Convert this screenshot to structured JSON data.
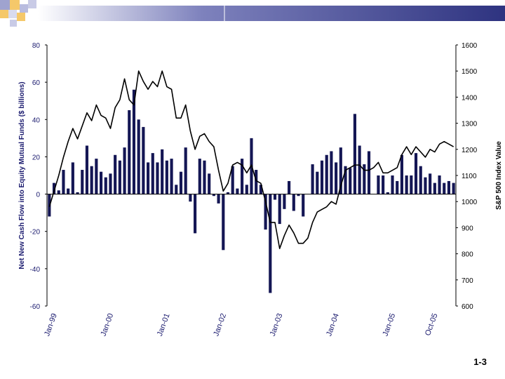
{
  "colors": {
    "bars": "#141654",
    "line": "#000000",
    "axis_left": "#1a1a6e",
    "band": "#3a3f8c"
  },
  "page_number": "1-3",
  "chart_data": {
    "type": "bar+line",
    "title": "",
    "ylabel_left": "Net New Cash Flow into Equity Mutual Funds ($ billions)",
    "ylabel_right": "S&P 500 Index Value",
    "ylim_left": [
      -60,
      80
    ],
    "ylim_right": [
      600,
      1600
    ],
    "yticks_left": [
      "80",
      "60",
      "40",
      "20",
      "0",
      "-20",
      "-40",
      "-60"
    ],
    "yticks_right": [
      "1600",
      "1500",
      "1400",
      "1300",
      "1200",
      "1100",
      "1000",
      "900",
      "800",
      "700",
      "600"
    ],
    "x_ticks": [
      {
        "label": "Jan-99",
        "index": 1
      },
      {
        "label": "Jan-00",
        "index": 13
      },
      {
        "label": "Jan-01",
        "index": 25
      },
      {
        "label": "Jan-02",
        "index": 37
      },
      {
        "label": "Jan-03",
        "index": 49
      },
      {
        "label": "Jan-04",
        "index": 61
      },
      {
        "label": "Jan-05",
        "index": 73
      },
      {
        "label": "Oct-05",
        "index": 82
      }
    ],
    "series": [
      {
        "name": "Net New Cash Flow",
        "kind": "bar",
        "axis": "left",
        "values": [
          -12,
          6,
          2,
          13,
          3,
          17,
          1,
          13,
          26,
          15,
          19,
          12,
          9,
          11,
          21,
          18,
          25,
          45,
          56,
          40,
          36,
          17,
          22,
          17,
          24,
          18,
          19,
          5,
          12,
          25,
          -4,
          -21,
          19,
          18,
          11,
          -1,
          -5,
          -30,
          1,
          15,
          3,
          19,
          5,
          30,
          13,
          5,
          -19,
          -53,
          -3,
          -16,
          -8,
          7,
          -9,
          -1,
          -12,
          0,
          16,
          12,
          18,
          21,
          23,
          17,
          25,
          15,
          14,
          43,
          26,
          16,
          23,
          0,
          10,
          10,
          1,
          10,
          7,
          21,
          10,
          10,
          22,
          15,
          9,
          11,
          6,
          10,
          6,
          7,
          6
        ]
      },
      {
        "name": "S&P 500",
        "kind": "line",
        "axis": "right",
        "values": [
          980,
          1040,
          1100,
          1170,
          1230,
          1280,
          1240,
          1290,
          1340,
          1310,
          1370,
          1330,
          1320,
          1280,
          1360,
          1390,
          1470,
          1390,
          1370,
          1500,
          1460,
          1430,
          1460,
          1440,
          1500,
          1440,
          1430,
          1320,
          1320,
          1370,
          1270,
          1200,
          1250,
          1260,
          1230,
          1210,
          1120,
          1040,
          1070,
          1140,
          1150,
          1140,
          1110,
          1140,
          1080,
          1070,
          1000,
          920,
          920,
          820,
          870,
          910,
          880,
          840,
          840,
          860,
          920,
          960,
          970,
          980,
          1000,
          990,
          1060,
          1120,
          1130,
          1140,
          1140,
          1120,
          1120,
          1130,
          1150,
          1110,
          1110,
          1120,
          1130,
          1180,
          1210,
          1180,
          1210,
          1190,
          1170,
          1200,
          1190,
          1220,
          1230,
          1220,
          1210
        ]
      }
    ]
  }
}
